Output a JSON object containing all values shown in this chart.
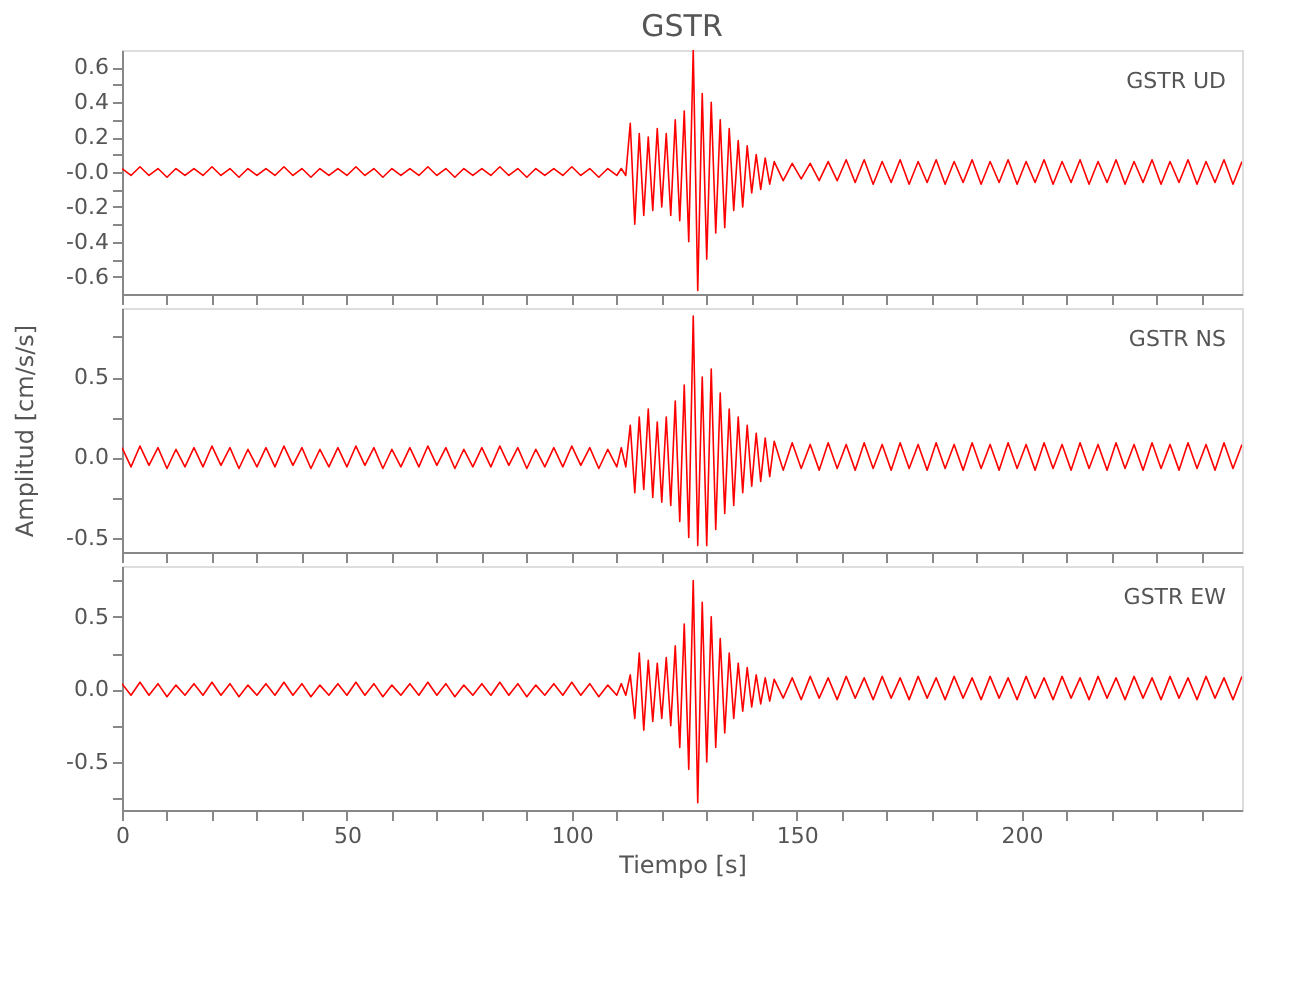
{
  "chart_data": [
    {
      "type": "line",
      "title": "GSTR",
      "annotations": [
        "GSTR UD"
      ],
      "tick_labels": "y",
      "grid": false,
      "xlim": [
        0,
        249
      ],
      "ylim": [
        -0.7,
        0.7
      ],
      "xticks": [
        0,
        {
          "value": 10,
          "label": null
        },
        {
          "value": 20,
          "label": null
        },
        {
          "value": 30,
          "label": null
        },
        {
          "value": 40,
          "label": null
        },
        50,
        {
          "value": 60,
          "label": null
        },
        {
          "value": 70,
          "label": null
        },
        {
          "value": 80,
          "label": null
        },
        {
          "value": 90,
          "label": null
        },
        100,
        {
          "value": 110,
          "label": null
        },
        {
          "value": 120,
          "label": null
        },
        {
          "value": 130,
          "label": null
        },
        {
          "value": 140,
          "label": null
        },
        150,
        {
          "value": 160,
          "label": null
        },
        {
          "value": 170,
          "label": null
        },
        {
          "value": 180,
          "label": null
        },
        {
          "value": 190,
          "label": null
        },
        200,
        {
          "value": 210,
          "label": null
        },
        {
          "value": 220,
          "label": null
        },
        {
          "value": 230,
          "label": null
        },
        {
          "value": 240,
          "label": null
        }
      ],
      "yticks": [
        -0.6,
        {
          "value": -0.5,
          "label": null
        },
        -0.4,
        {
          "value": -0.3,
          "label": null
        },
        -0.2,
        {
          "value": -0.1,
          "label": null
        },
        {
          "value": 0,
          "label": "-0.0"
        },
        {
          "value": 0.1,
          "label": null
        },
        0.2,
        {
          "value": 0.3,
          "label": null
        },
        0.4,
        {
          "value": 0.5,
          "label": null
        },
        0.6
      ],
      "x": [
        0,
        2,
        4,
        6,
        8,
        10,
        12,
        14,
        16,
        18,
        20,
        22,
        24,
        26,
        28,
        30,
        32,
        34,
        36,
        38,
        40,
        42,
        44,
        46,
        48,
        50,
        52,
        54,
        56,
        58,
        60,
        62,
        64,
        66,
        68,
        70,
        72,
        74,
        76,
        78,
        80,
        82,
        84,
        86,
        88,
        90,
        92,
        94,
        96,
        98,
        100,
        102,
        104,
        106,
        108,
        110,
        111,
        112,
        113,
        114,
        115,
        116,
        117,
        118,
        119,
        120,
        121,
        122,
        123,
        124,
        125,
        126,
        127,
        128,
        129,
        130,
        131,
        132,
        133,
        134,
        135,
        136,
        137,
        138,
        139,
        140,
        141,
        142,
        143,
        144,
        145,
        147,
        149,
        151,
        153,
        155,
        157,
        159,
        161,
        163,
        165,
        167,
        169,
        171,
        173,
        175,
        177,
        179,
        181,
        183,
        185,
        187,
        189,
        191,
        193,
        195,
        197,
        199,
        201,
        203,
        205,
        207,
        209,
        211,
        213,
        215,
        217,
        219,
        221,
        223,
        225,
        227,
        229,
        231,
        233,
        235,
        237,
        239,
        241,
        243,
        245,
        247,
        249
      ],
      "series": [
        {
          "color": "#ff0000",
          "values": [
            0.02,
            -0.02,
            0.03,
            -0.02,
            0.02,
            -0.03,
            0.02,
            -0.02,
            0.02,
            -0.02,
            0.03,
            -0.02,
            0.02,
            -0.03,
            0.02,
            -0.02,
            0.02,
            -0.02,
            0.03,
            -0.02,
            0.02,
            -0.03,
            0.02,
            -0.02,
            0.02,
            -0.02,
            0.03,
            -0.02,
            0.02,
            -0.03,
            0.02,
            -0.02,
            0.02,
            -0.02,
            0.03,
            -0.02,
            0.02,
            -0.03,
            0.02,
            -0.02,
            0.02,
            -0.02,
            0.03,
            -0.02,
            0.02,
            -0.03,
            0.02,
            -0.02,
            0.02,
            -0.02,
            0.03,
            -0.02,
            0.02,
            -0.03,
            0.02,
            -0.02,
            0.02,
            -0.02,
            0.28,
            -0.3,
            0.22,
            -0.25,
            0.2,
            -0.22,
            0.25,
            -0.2,
            0.22,
            -0.25,
            0.3,
            -0.28,
            0.35,
            -0.4,
            0.7,
            -0.68,
            0.45,
            -0.5,
            0.4,
            -0.35,
            0.3,
            -0.32,
            0.25,
            -0.22,
            0.18,
            -0.2,
            0.15,
            -0.12,
            0.1,
            -0.1,
            0.08,
            -0.07,
            0.06,
            -0.05,
            0.05,
            -0.04,
            0.05,
            -0.05,
            0.06,
            -0.05,
            0.07,
            -0.06,
            0.07,
            -0.07,
            0.06,
            -0.06,
            0.07,
            -0.07,
            0.06,
            -0.06,
            0.07,
            -0.07,
            0.06,
            -0.06,
            0.07,
            -0.07,
            0.06,
            -0.06,
            0.07,
            -0.07,
            0.06,
            -0.06,
            0.07,
            -0.07,
            0.06,
            -0.06,
            0.07,
            -0.07,
            0.06,
            -0.06,
            0.07,
            -0.07,
            0.06,
            -0.06,
            0.07,
            -0.07,
            0.06,
            -0.06,
            0.07,
            -0.07,
            0.06,
            -0.06,
            0.07,
            -0.07,
            0.06
          ]
        }
      ]
    },
    {
      "type": "line",
      "ylabel": "Amplitud [cm/s/s]",
      "annotations": [
        "GSTR NS"
      ],
      "tick_labels": "y",
      "grid": false,
      "xlim": [
        0,
        249
      ],
      "ylim": [
        -0.59,
        0.93
      ],
      "xticks": [
        0,
        {
          "value": 10,
          "label": null
        },
        {
          "value": 20,
          "label": null
        },
        {
          "value": 30,
          "label": null
        },
        {
          "value": 40,
          "label": null
        },
        50,
        {
          "value": 60,
          "label": null
        },
        {
          "value": 70,
          "label": null
        },
        {
          "value": 80,
          "label": null
        },
        {
          "value": 90,
          "label": null
        },
        100,
        {
          "value": 110,
          "label": null
        },
        {
          "value": 120,
          "label": null
        },
        {
          "value": 130,
          "label": null
        },
        {
          "value": 140,
          "label": null
        },
        150,
        {
          "value": 160,
          "label": null
        },
        {
          "value": 170,
          "label": null
        },
        {
          "value": 180,
          "label": null
        },
        {
          "value": 190,
          "label": null
        },
        200,
        {
          "value": 210,
          "label": null
        },
        {
          "value": 220,
          "label": null
        },
        {
          "value": 230,
          "label": null
        },
        {
          "value": 240,
          "label": null
        }
      ],
      "yticks": [
        {
          "value": -0.5,
          "label": "-0.5"
        },
        {
          "value": -0.25,
          "label": null
        },
        {
          "value": 0,
          "label": "0.0"
        },
        {
          "value": 0.25,
          "label": null
        },
        {
          "value": 0.5,
          "label": "0.5"
        },
        {
          "value": 0.75,
          "label": null
        }
      ],
      "x": [
        0,
        2,
        4,
        6,
        8,
        10,
        12,
        14,
        16,
        18,
        20,
        22,
        24,
        26,
        28,
        30,
        32,
        34,
        36,
        38,
        40,
        42,
        44,
        46,
        48,
        50,
        52,
        54,
        56,
        58,
        60,
        62,
        64,
        66,
        68,
        70,
        72,
        74,
        76,
        78,
        80,
        82,
        84,
        86,
        88,
        90,
        92,
        94,
        96,
        98,
        100,
        102,
        104,
        106,
        108,
        110,
        111,
        112,
        113,
        114,
        115,
        116,
        117,
        118,
        119,
        120,
        121,
        122,
        123,
        124,
        125,
        126,
        127,
        128,
        129,
        130,
        131,
        132,
        133,
        134,
        135,
        136,
        137,
        138,
        139,
        140,
        141,
        142,
        143,
        144,
        145,
        147,
        149,
        151,
        153,
        155,
        157,
        159,
        161,
        163,
        165,
        167,
        169,
        171,
        173,
        175,
        177,
        179,
        181,
        183,
        185,
        187,
        189,
        191,
        193,
        195,
        197,
        199,
        201,
        203,
        205,
        207,
        209,
        211,
        213,
        215,
        217,
        219,
        221,
        223,
        225,
        227,
        229,
        231,
        233,
        235,
        237,
        239,
        241,
        243,
        245,
        247,
        249
      ],
      "series": [
        {
          "color": "#ff0000",
          "values": [
            0.06,
            -0.06,
            0.07,
            -0.05,
            0.06,
            -0.07,
            0.05,
            -0.06,
            0.06,
            -0.06,
            0.07,
            -0.05,
            0.06,
            -0.07,
            0.05,
            -0.06,
            0.06,
            -0.06,
            0.07,
            -0.05,
            0.06,
            -0.07,
            0.05,
            -0.06,
            0.06,
            -0.06,
            0.07,
            -0.05,
            0.06,
            -0.07,
            0.05,
            -0.06,
            0.06,
            -0.06,
            0.07,
            -0.05,
            0.06,
            -0.07,
            0.05,
            -0.06,
            0.06,
            -0.06,
            0.07,
            -0.05,
            0.06,
            -0.07,
            0.05,
            -0.06,
            0.06,
            -0.06,
            0.07,
            -0.05,
            0.06,
            -0.07,
            0.05,
            -0.06,
            0.06,
            -0.06,
            0.2,
            -0.22,
            0.25,
            -0.2,
            0.3,
            -0.25,
            0.22,
            -0.28,
            0.25,
            -0.3,
            0.35,
            -0.4,
            0.45,
            -0.5,
            0.88,
            -0.55,
            0.5,
            -0.55,
            0.55,
            -0.45,
            0.4,
            -0.35,
            0.3,
            -0.3,
            0.25,
            -0.22,
            0.2,
            -0.18,
            0.15,
            -0.15,
            0.12,
            -0.12,
            0.1,
            -0.08,
            0.09,
            -0.07,
            0.08,
            -0.08,
            0.09,
            -0.07,
            0.08,
            -0.08,
            0.09,
            -0.07,
            0.08,
            -0.08,
            0.09,
            -0.07,
            0.08,
            -0.08,
            0.09,
            -0.07,
            0.08,
            -0.08,
            0.09,
            -0.07,
            0.08,
            -0.08,
            0.09,
            -0.07,
            0.08,
            -0.08,
            0.09,
            -0.07,
            0.08,
            -0.08,
            0.09,
            -0.07,
            0.08,
            -0.08,
            0.09,
            -0.07,
            0.08,
            -0.08,
            0.09,
            -0.07,
            0.08,
            -0.08,
            0.09,
            -0.07,
            0.08,
            -0.08,
            0.09,
            -0.07,
            0.08
          ]
        }
      ]
    },
    {
      "type": "line",
      "xlabel": "Tiempo [s]",
      "annotations": [
        "GSTR EW"
      ],
      "grid": false,
      "xlim": [
        0,
        249
      ],
      "ylim": [
        -0.83,
        0.85
      ],
      "xticks": [
        0,
        {
          "value": 10,
          "label": null
        },
        {
          "value": 20,
          "label": null
        },
        {
          "value": 30,
          "label": null
        },
        {
          "value": 40,
          "label": null
        },
        50,
        {
          "value": 60,
          "label": null
        },
        {
          "value": 70,
          "label": null
        },
        {
          "value": 80,
          "label": null
        },
        {
          "value": 90,
          "label": null
        },
        100,
        {
          "value": 110,
          "label": null
        },
        {
          "value": 120,
          "label": null
        },
        {
          "value": 130,
          "label": null
        },
        {
          "value": 140,
          "label": null
        },
        150,
        {
          "value": 160,
          "label": null
        },
        {
          "value": 170,
          "label": null
        },
        {
          "value": 180,
          "label": null
        },
        {
          "value": 190,
          "label": null
        },
        200,
        {
          "value": 210,
          "label": null
        },
        {
          "value": 220,
          "label": null
        },
        {
          "value": 230,
          "label": null
        },
        {
          "value": 240,
          "label": null
        }
      ],
      "yticks": [
        {
          "value": -0.75,
          "label": null
        },
        {
          "value": -0.5,
          "label": "-0.5"
        },
        {
          "value": -0.25,
          "label": null
        },
        {
          "value": 0,
          "label": "0.0"
        },
        {
          "value": 0.25,
          "label": null
        },
        {
          "value": 0.5,
          "label": "0.5"
        },
        {
          "value": 0.75,
          "label": null
        }
      ],
      "x": [
        0,
        2,
        4,
        6,
        8,
        10,
        12,
        14,
        16,
        18,
        20,
        22,
        24,
        26,
        28,
        30,
        32,
        34,
        36,
        38,
        40,
        42,
        44,
        46,
        48,
        50,
        52,
        54,
        56,
        58,
        60,
        62,
        64,
        66,
        68,
        70,
        72,
        74,
        76,
        78,
        80,
        82,
        84,
        86,
        88,
        90,
        92,
        94,
        96,
        98,
        100,
        102,
        104,
        106,
        108,
        110,
        111,
        112,
        113,
        114,
        115,
        116,
        117,
        118,
        119,
        120,
        121,
        122,
        123,
        124,
        125,
        126,
        127,
        128,
        129,
        130,
        131,
        132,
        133,
        134,
        135,
        136,
        137,
        138,
        139,
        140,
        141,
        142,
        143,
        144,
        145,
        147,
        149,
        151,
        153,
        155,
        157,
        159,
        161,
        163,
        165,
        167,
        169,
        171,
        173,
        175,
        177,
        179,
        181,
        183,
        185,
        187,
        189,
        191,
        193,
        195,
        197,
        199,
        201,
        203,
        205,
        207,
        209,
        211,
        213,
        215,
        217,
        219,
        221,
        223,
        225,
        227,
        229,
        231,
        233,
        235,
        237,
        239,
        241,
        243,
        245,
        247,
        249
      ],
      "series": [
        {
          "color": "#ff0000",
          "values": [
            0.04,
            -0.04,
            0.05,
            -0.04,
            0.04,
            -0.05,
            0.03,
            -0.04,
            0.04,
            -0.04,
            0.05,
            -0.04,
            0.04,
            -0.05,
            0.03,
            -0.04,
            0.04,
            -0.04,
            0.05,
            -0.04,
            0.04,
            -0.05,
            0.03,
            -0.04,
            0.04,
            -0.04,
            0.05,
            -0.04,
            0.04,
            -0.05,
            0.03,
            -0.04,
            0.04,
            -0.04,
            0.05,
            -0.04,
            0.04,
            -0.05,
            0.03,
            -0.04,
            0.04,
            -0.04,
            0.05,
            -0.04,
            0.04,
            -0.05,
            0.03,
            -0.04,
            0.04,
            -0.04,
            0.05,
            -0.04,
            0.04,
            -0.05,
            0.03,
            -0.04,
            0.04,
            -0.04,
            0.1,
            -0.2,
            0.25,
            -0.28,
            0.2,
            -0.22,
            0.18,
            -0.2,
            0.22,
            -0.25,
            0.3,
            -0.4,
            0.45,
            -0.55,
            0.75,
            -0.78,
            0.6,
            -0.5,
            0.5,
            -0.4,
            0.35,
            -0.3,
            0.25,
            -0.2,
            0.18,
            -0.15,
            0.15,
            -0.12,
            0.1,
            -0.1,
            0.08,
            -0.08,
            0.07,
            -0.06,
            0.08,
            -0.07,
            0.09,
            -0.06,
            0.08,
            -0.07,
            0.09,
            -0.06,
            0.08,
            -0.07,
            0.09,
            -0.06,
            0.08,
            -0.07,
            0.09,
            -0.06,
            0.08,
            -0.07,
            0.09,
            -0.06,
            0.08,
            -0.07,
            0.09,
            -0.06,
            0.08,
            -0.07,
            0.09,
            -0.06,
            0.08,
            -0.07,
            0.09,
            -0.06,
            0.08,
            -0.07,
            0.09,
            -0.06,
            0.08,
            -0.07,
            0.09,
            -0.06,
            0.08,
            -0.07,
            0.09,
            -0.06,
            0.08,
            -0.07,
            0.09,
            -0.06,
            0.08,
            -0.07,
            0.09
          ]
        }
      ]
    }
  ]
}
